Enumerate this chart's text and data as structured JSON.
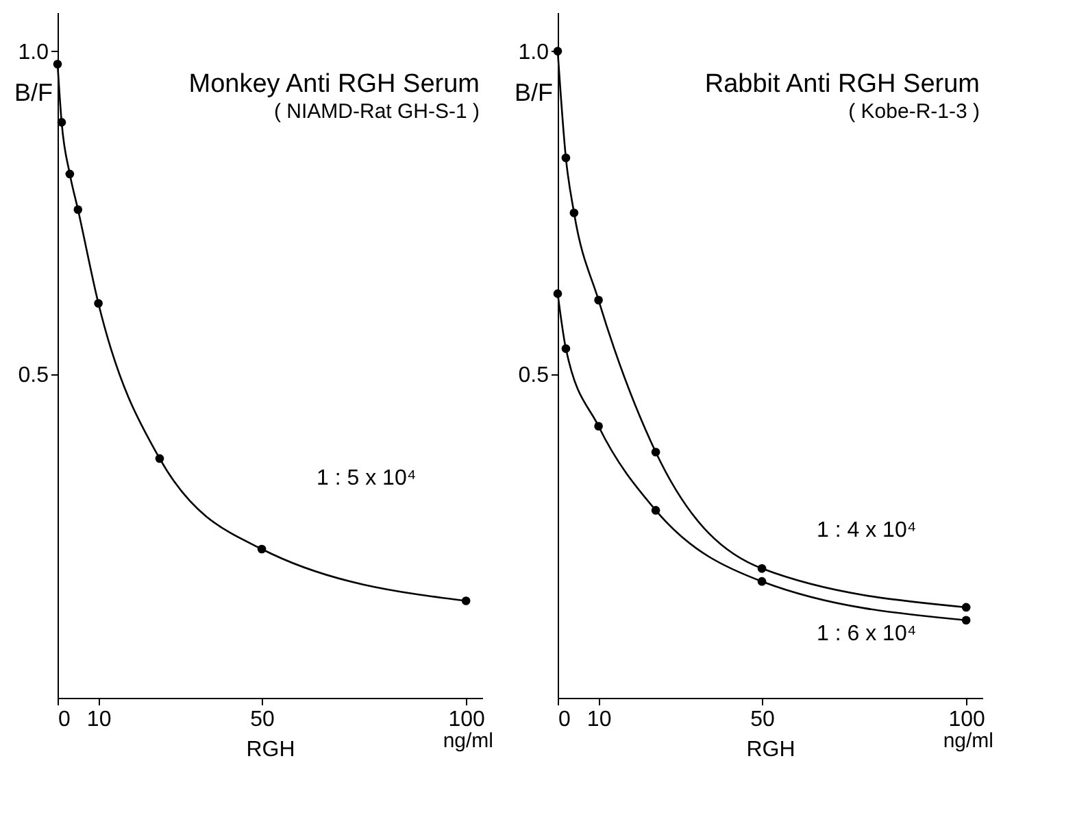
{
  "chart_data": [
    {
      "type": "line",
      "title": "Monkey Anti RGH Serum",
      "subtitle": "( NIAMD-Rat GH-S-1 )",
      "xlabel": "RGH",
      "ylabel": "B/F",
      "annotations": [
        "ng/ml"
      ],
      "series": [
        {
          "name": "1 : 5 x 10⁴",
          "color": "#000000",
          "x": [
            0,
            1,
            3,
            5,
            10,
            25,
            50,
            100
          ],
          "values": [
            0.98,
            0.89,
            0.81,
            0.755,
            0.61,
            0.37,
            0.23,
            0.15
          ]
        }
      ],
      "xlim": [
        0,
        104
      ],
      "ylim": [
        0,
        1.06
      ],
      "xticks": [
        0,
        10,
        50,
        100
      ],
      "yticks": [
        0.5,
        {
          "value": 1.0,
          "label": "1.0"
        }
      ],
      "marker": "circle",
      "line_style": "solid",
      "grid": false
    },
    {
      "type": "line",
      "title": "Rabbit Anti RGH Serum",
      "subtitle": "( Kobe-R-1-3 )",
      "xlabel": "RGH",
      "ylabel": "B/F",
      "annotations": [
        "ng/ml"
      ],
      "series": [
        {
          "name": "1 : 4 x 10⁴",
          "color": "#000000",
          "x": [
            0,
            2,
            4,
            10,
            24,
            50,
            100
          ],
          "values": [
            1.0,
            0.835,
            0.75,
            0.615,
            0.38,
            0.2,
            0.14
          ]
        },
        {
          "name": "1 : 6 x 10⁴",
          "color": "#000000",
          "x": [
            0,
            2,
            10,
            24,
            50,
            100
          ],
          "values": [
            0.625,
            0.54,
            0.42,
            0.29,
            0.18,
            0.12
          ]
        }
      ],
      "xlim": [
        0,
        104
      ],
      "ylim": [
        0,
        1.06
      ],
      "xticks": [
        0,
        10,
        50,
        100
      ],
      "yticks": [
        0.5,
        {
          "value": 1.0,
          "label": "1.0"
        }
      ],
      "marker": "circle",
      "line_style": "solid",
      "grid": false
    }
  ]
}
